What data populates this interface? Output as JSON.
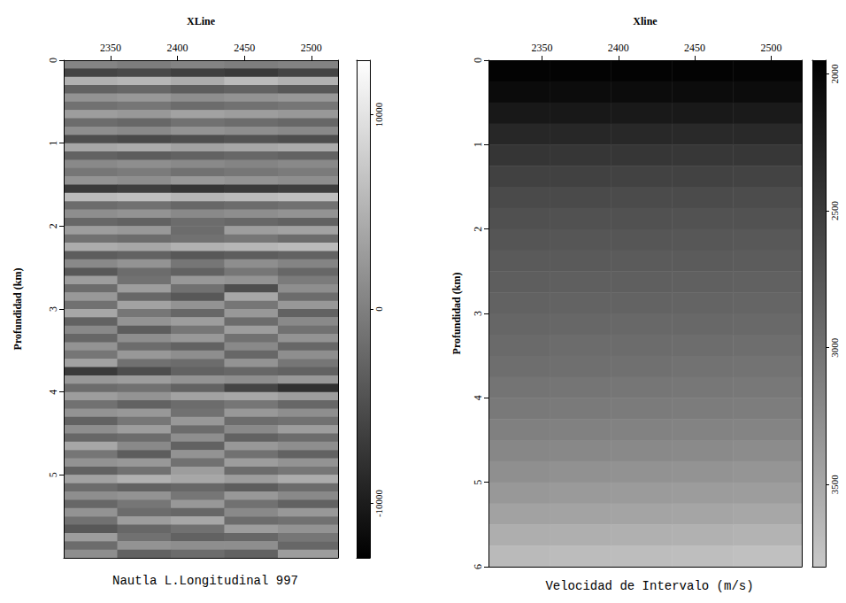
{
  "chart_data": [
    {
      "type": "heatmap",
      "title": "Nautla L.Longitudinal 997",
      "xlabel": "XLine",
      "ylabel": "Profundidad (km)",
      "xlim": [
        2315,
        2520
      ],
      "xticks": [
        2350,
        2400,
        2450,
        2500
      ],
      "ylim": [
        0,
        6
      ],
      "yticks": [
        0,
        1,
        2,
        3,
        4,
        5
      ],
      "x_edges": [
        2315,
        2355,
        2395,
        2435,
        2475,
        2520
      ],
      "y_edges": [
        0,
        0.1,
        0.2,
        0.3,
        0.4,
        0.5,
        0.6,
        0.7,
        0.8,
        0.9,
        1,
        1.1,
        1.2,
        1.3,
        1.4,
        1.5,
        1.6,
        1.7,
        1.8,
        1.9,
        2,
        2.1,
        2.2,
        2.3,
        2.4,
        2.5,
        2.6,
        2.7,
        2.8,
        2.9,
        3,
        3.1,
        3.2,
        3.3,
        3.4,
        3.5,
        3.6,
        3.7,
        3.8,
        3.9,
        4,
        4.1,
        4.2,
        4.3,
        4.4,
        4.5,
        4.6,
        4.7,
        4.8,
        4.9,
        5,
        5.1,
        5.2,
        5.3,
        5.4,
        5.5,
        5.6,
        5.7,
        5.8,
        5.9,
        6
      ],
      "z": [
        [
          500,
          -300,
          400,
          -200,
          300
        ],
        [
          -6000,
          -5500,
          -6500,
          -7000,
          -6000
        ],
        [
          5000,
          5500,
          4500,
          6000,
          5000
        ],
        [
          -3000,
          -2500,
          -3500,
          -3000,
          -4000
        ],
        [
          2000,
          2500,
          1500,
          2000,
          2500
        ],
        [
          -1500,
          -1000,
          -2000,
          -1500,
          -1000
        ],
        [
          3000,
          2500,
          3500,
          3000,
          2500
        ],
        [
          -2000,
          -2500,
          -1500,
          -2000,
          -2500
        ],
        [
          1500,
          1000,
          2000,
          1500,
          1000
        ],
        [
          -5000,
          -5500,
          -5000,
          -4500,
          -5000
        ],
        [
          4000,
          4500,
          3500,
          4000,
          4500
        ],
        [
          -3000,
          -3500,
          -3000,
          -2500,
          -3000
        ],
        [
          1000,
          1500,
          1000,
          500,
          1000
        ],
        [
          -1000,
          -500,
          -1500,
          -1000,
          -500
        ],
        [
          2000,
          1500,
          2500,
          2000,
          1500
        ],
        [
          -7000,
          -6500,
          -7500,
          -7000,
          -6500
        ],
        [
          6000,
          6500,
          5500,
          6000,
          6500
        ],
        [
          -2000,
          -1500,
          -2500,
          -2000,
          -1500
        ],
        [
          1500,
          2000,
          1000,
          1500,
          2000
        ],
        [
          -2500,
          -3000,
          -2000,
          -2500,
          -3000
        ],
        [
          3000,
          2500,
          -2000,
          3000,
          3500
        ],
        [
          -1500,
          -2000,
          -1500,
          -1000,
          -2000
        ],
        [
          4500,
          4000,
          5000,
          5500,
          6000
        ],
        [
          -3500,
          -3000,
          -4000,
          -3500,
          -3000
        ],
        [
          1000,
          2000,
          -1000,
          1500,
          500
        ],
        [
          -4000,
          -2000,
          -3000,
          -1000,
          -2500
        ],
        [
          3000,
          -1500,
          2500,
          2000,
          -500
        ],
        [
          -2000,
          3000,
          -1500,
          -5000,
          1500
        ],
        [
          2500,
          -2500,
          -4000,
          4000,
          -2000
        ],
        [
          -1500,
          3500,
          2000,
          -1000,
          2500
        ],
        [
          4000,
          -1000,
          -2500,
          2500,
          -3000
        ],
        [
          -3000,
          2000,
          3000,
          -2000,
          1000
        ],
        [
          1000,
          -3500,
          -1000,
          3000,
          -1500
        ],
        [
          -2500,
          1500,
          2500,
          -1500,
          2000
        ],
        [
          2000,
          -2000,
          -3000,
          1000,
          -2500
        ],
        [
          -1000,
          2500,
          1500,
          -2500,
          1500
        ],
        [
          3500,
          -1500,
          -2000,
          2000,
          -1000
        ],
        [
          -7000,
          -5000,
          -3000,
          -2500,
          -3000
        ],
        [
          2500,
          3000,
          2000,
          1500,
          2500
        ],
        [
          -2000,
          -1500,
          -3000,
          -6000,
          -8000
        ],
        [
          3000,
          2000,
          3500,
          4000,
          3000
        ],
        [
          -1500,
          -3000,
          -2000,
          -1000,
          -2500
        ],
        [
          2000,
          2500,
          -1500,
          2500,
          1500
        ],
        [
          -3000,
          -1000,
          2500,
          -2000,
          -1500
        ],
        [
          1500,
          3000,
          -2000,
          1000,
          3000
        ],
        [
          -2500,
          -2000,
          1500,
          -3000,
          -2000
        ],
        [
          4000,
          1000,
          -3000,
          2500,
          1500
        ],
        [
          -1000,
          -3500,
          2000,
          -1500,
          -3000
        ],
        [
          2000,
          2500,
          -1500,
          3000,
          2000
        ],
        [
          -3000,
          -1500,
          3000,
          -2000,
          -1000
        ],
        [
          3500,
          5000,
          4000,
          3000,
          4500
        ],
        [
          -2000,
          -3000,
          -2500,
          -3500,
          -2000
        ],
        [
          1500,
          2000,
          -1000,
          2500,
          1000
        ],
        [
          -2500,
          -1000,
          2500,
          -1500,
          -3000
        ],
        [
          2000,
          -2000,
          -2500,
          1000,
          2500
        ],
        [
          -1500,
          3000,
          4000,
          -2000,
          -1500
        ],
        [
          -4000,
          -2500,
          -1500,
          3000,
          2000
        ],
        [
          3000,
          -1500,
          -3000,
          -2500,
          -1000
        ],
        [
          -2000,
          2000,
          1500,
          1500,
          -2500
        ],
        [
          1500,
          -3000,
          -2000,
          -3000,
          3000
        ]
      ],
      "colorbar": {
        "range": [
          12800,
          -12800
        ],
        "ticks": [
          10000,
          0,
          -10000
        ],
        "colors": [
          "#000000",
          "#ffffff"
        ]
      }
    },
    {
      "type": "heatmap",
      "title": "Velocidad de Intervalo (m/s)",
      "xlabel": "Xline",
      "ylabel": "Profundidad (km)",
      "xlim": [
        2315,
        2520
      ],
      "xticks": [
        2350,
        2400,
        2450,
        2500
      ],
      "ylim": [
        0,
        6
      ],
      "yticks": [
        0,
        1,
        2,
        3,
        4,
        5,
        6
      ],
      "x_edges": [
        2315,
        2355,
        2395,
        2435,
        2475,
        2520
      ],
      "y_edges": [
        0,
        0.25,
        0.5,
        0.75,
        1,
        1.25,
        1.5,
        1.75,
        2,
        2.25,
        2.5,
        2.75,
        3,
        3.25,
        3.5,
        3.75,
        4,
        4.25,
        4.5,
        4.75,
        5,
        5.25,
        5.5,
        5.75,
        6
      ],
      "z": [
        [
          1975,
          1978,
          1980,
          1982,
          1985
        ],
        [
          2055,
          2058,
          2060,
          2062,
          2065
        ],
        [
          2170,
          2175,
          2180,
          2185,
          2190
        ],
        [
          2310,
          2315,
          2320,
          2325,
          2330
        ],
        [
          2440,
          2445,
          2450,
          2455,
          2460
        ],
        [
          2550,
          2555,
          2560,
          2565,
          2570
        ],
        [
          2630,
          2635,
          2640,
          2645,
          2650
        ],
        [
          2690,
          2695,
          2700,
          2705,
          2710
        ],
        [
          2740,
          2745,
          2750,
          2755,
          2760
        ],
        [
          2780,
          2785,
          2790,
          2795,
          2800
        ],
        [
          2815,
          2825,
          2830,
          2835,
          2845
        ],
        [
          2855,
          2865,
          2870,
          2875,
          2885
        ],
        [
          2895,
          2905,
          2910,
          2915,
          2925
        ],
        [
          2935,
          2945,
          2950,
          2955,
          2965
        ],
        [
          2970,
          2980,
          2990,
          3000,
          3010
        ],
        [
          3020,
          3030,
          3040,
          3050,
          3060
        ],
        [
          3070,
          3080,
          3090,
          3100,
          3110
        ],
        [
          3130,
          3140,
          3150,
          3160,
          3170
        ],
        [
          3195,
          3210,
          3220,
          3230,
          3245
        ],
        [
          3275,
          3290,
          3300,
          3310,
          3325
        ],
        [
          3355,
          3370,
          3380,
          3390,
          3405
        ],
        [
          3445,
          3460,
          3470,
          3480,
          3495
        ],
        [
          3555,
          3570,
          3580,
          3590,
          3605
        ],
        [
          3675,
          3690,
          3700,
          3710,
          3725
        ]
      ],
      "colorbar": {
        "range": [
          1950,
          3800
        ],
        "ticks": [
          2000,
          2500,
          3000,
          3500
        ],
        "colors": [
          "#000000",
          "#c8c8c8"
        ]
      }
    }
  ]
}
